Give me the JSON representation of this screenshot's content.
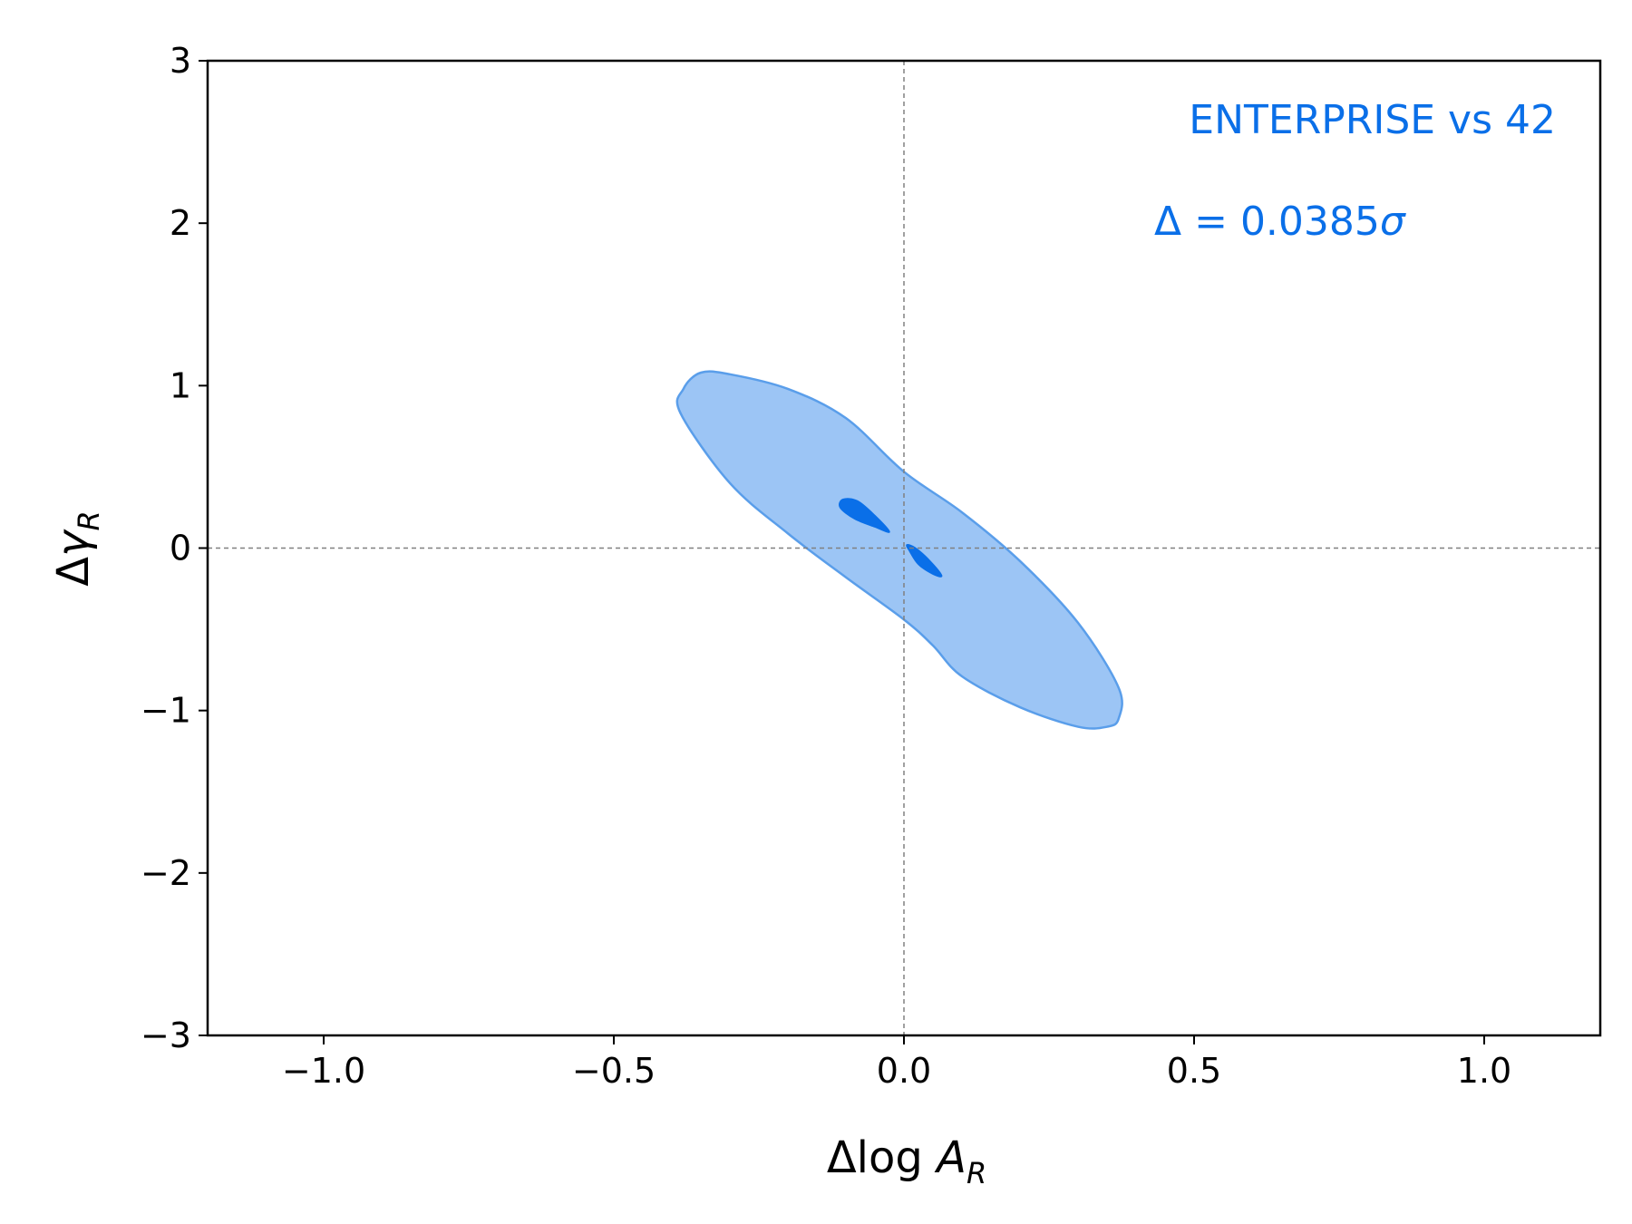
{
  "chart_data": {
    "type": "contour",
    "xlabel": "Δlog A_R",
    "ylabel": "Δγ_R",
    "xlim": [
      -1.2,
      1.2
    ],
    "ylim": [
      -3,
      3
    ],
    "x_ticks": [
      -1.0,
      -0.5,
      0.0,
      0.5,
      1.0
    ],
    "x_tick_labels": [
      "−1.0",
      "−0.5",
      "0.0",
      "0.5",
      "1.0"
    ],
    "y_ticks": [
      -3,
      -2,
      -1,
      0,
      1,
      2,
      3
    ],
    "y_tick_labels": [
      "−3",
      "−2",
      "−1",
      "0",
      "1",
      "2",
      "3"
    ],
    "reference_lines": {
      "x": 0,
      "y": 0,
      "style": "dashed",
      "color": "#808080"
    },
    "annotations": {
      "label": "ENTERPRISE vs 42",
      "delta": "Δ = 0.0385σ",
      "color": "#0a6fe8"
    },
    "colors": {
      "outer_fill": "#9cc5f5",
      "outer_stroke": "#5a9eea",
      "inner_fill": "#0a6fe8"
    },
    "contours": [
      {
        "level": "outer",
        "polygon": [
          [
            -0.35,
            1.08
          ],
          [
            -0.3,
            1.07
          ],
          [
            -0.2,
            0.98
          ],
          [
            -0.1,
            0.8
          ],
          [
            0.0,
            0.47
          ],
          [
            0.1,
            0.22
          ],
          [
            0.2,
            -0.08
          ],
          [
            0.3,
            -0.46
          ],
          [
            0.37,
            -0.86
          ],
          [
            0.37,
            -1.05
          ],
          [
            0.35,
            -1.1
          ],
          [
            0.3,
            -1.1
          ],
          [
            0.2,
            -0.98
          ],
          [
            0.1,
            -0.79
          ],
          [
            0.05,
            -0.6
          ],
          [
            0.0,
            -0.44
          ],
          [
            -0.1,
            -0.18
          ],
          [
            -0.2,
            0.09
          ],
          [
            -0.3,
            0.4
          ],
          [
            -0.385,
            0.83
          ],
          [
            -0.38,
            0.98
          ]
        ]
      },
      {
        "level": "inner-1",
        "polygon": [
          [
            -0.105,
            0.3
          ],
          [
            -0.08,
            0.29
          ],
          [
            -0.05,
            0.2
          ],
          [
            -0.025,
            0.1
          ],
          [
            -0.05,
            0.13
          ],
          [
            -0.085,
            0.18
          ],
          [
            -0.11,
            0.25
          ]
        ]
      },
      {
        "level": "inner-2",
        "polygon": [
          [
            0.005,
            0.02
          ],
          [
            0.02,
            0.0
          ],
          [
            0.045,
            -0.08
          ],
          [
            0.065,
            -0.17
          ],
          [
            0.05,
            -0.16
          ],
          [
            0.025,
            -0.1
          ],
          [
            0.01,
            -0.02
          ]
        ]
      }
    ]
  }
}
